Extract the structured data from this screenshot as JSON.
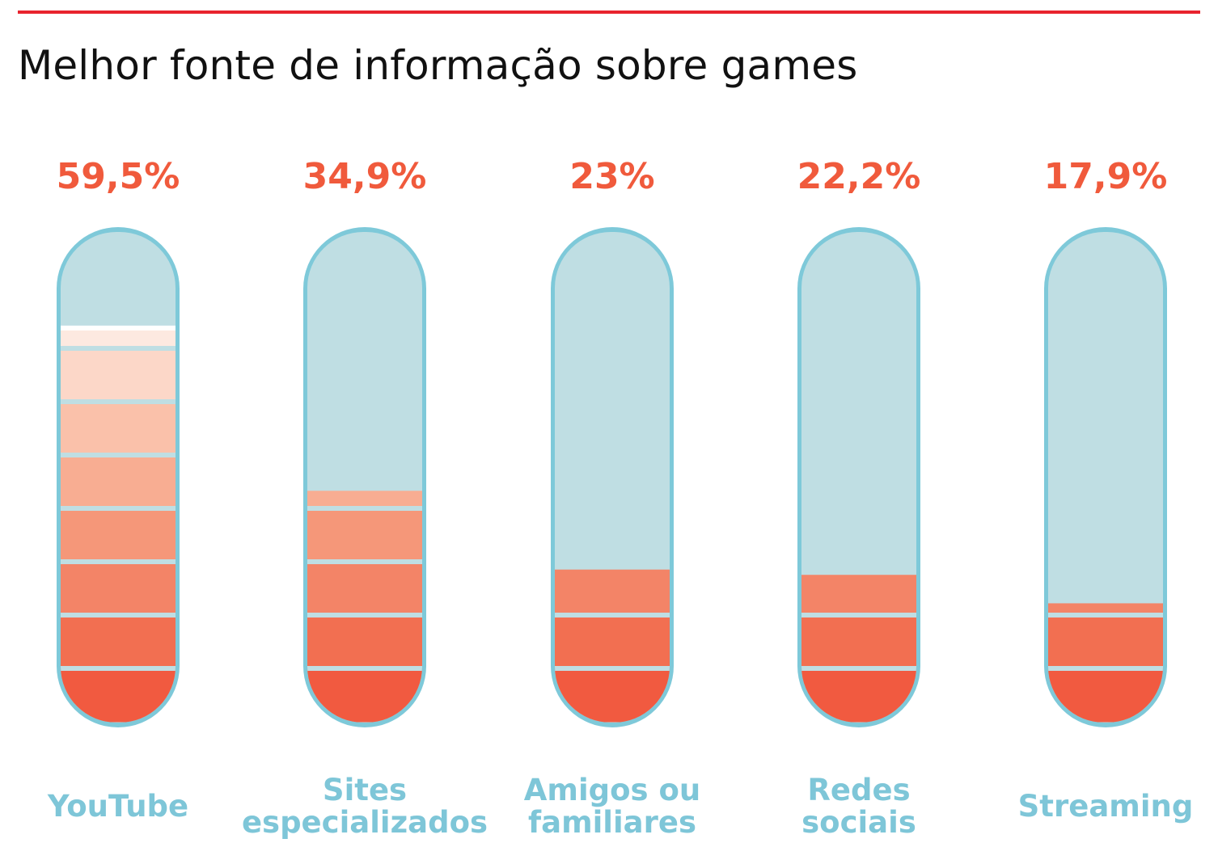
{
  "title": "Melhor fonte de informação sobre games",
  "colors": {
    "rule": "#e8232e",
    "tube_outline": "#7ec9d9",
    "tube_empty": "#bfdee3",
    "percent_text": "#f05a3c",
    "label_text": "#7ec6d8",
    "fill_scale": [
      "#f15a40",
      "#f26f51",
      "#f38467",
      "#f59779",
      "#f8ad92",
      "#fac1aa",
      "#fcd7c8",
      "#fde9e0"
    ]
  },
  "chart_data": {
    "type": "bar",
    "title": "Melhor fonte de informação sobre games",
    "categories": [
      {
        "label_lines": [
          "YouTube"
        ],
        "value": 59.5,
        "value_label": "59,5%"
      },
      {
        "label_lines": [
          "Sites",
          "especializados"
        ],
        "value": 34.9,
        "value_label": "34,9%"
      },
      {
        "label_lines": [
          "Amigos ou",
          "familiares"
        ],
        "value": 23,
        "value_label": "23%"
      },
      {
        "label_lines": [
          "Redes",
          "sociais"
        ],
        "value": 22.2,
        "value_label": "22,2%"
      },
      {
        "label_lines": [
          "Streaming"
        ],
        "value": 17.9,
        "value_label": "17,9%"
      }
    ],
    "values": [
      59.5,
      34.9,
      23,
      22.2,
      17.9
    ],
    "ylim": [
      0,
      72
    ],
    "grid": false,
    "legend": "none"
  }
}
